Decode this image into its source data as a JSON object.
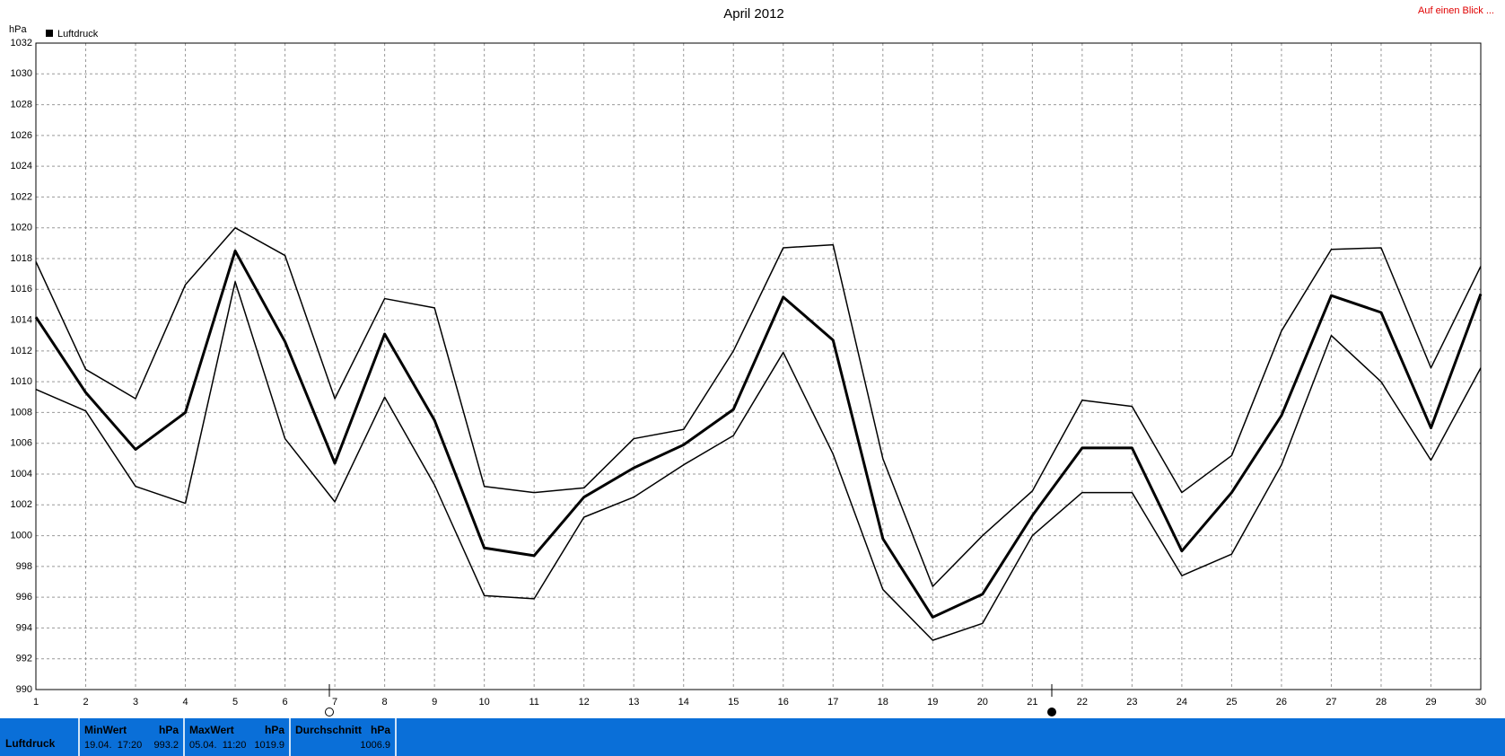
{
  "chart_data": {
    "type": "line",
    "title": "April 2012",
    "y_label": "hPa",
    "corner_link": "Auf einen Blick ...",
    "x": [
      1,
      2,
      3,
      4,
      5,
      6,
      7,
      8,
      9,
      10,
      11,
      12,
      13,
      14,
      15,
      16,
      17,
      18,
      19,
      20,
      21,
      22,
      23,
      24,
      25,
      26,
      27,
      28,
      29,
      30
    ],
    "xlim": [
      1,
      30
    ],
    "xticks": [
      1,
      2,
      3,
      4,
      5,
      6,
      7,
      8,
      9,
      10,
      11,
      12,
      13,
      14,
      15,
      16,
      17,
      18,
      19,
      20,
      21,
      22,
      23,
      24,
      25,
      26,
      27,
      28,
      29,
      30
    ],
    "ylim": [
      990,
      1032
    ],
    "yticks": [
      990,
      992,
      994,
      996,
      998,
      1000,
      1002,
      1004,
      1006,
      1008,
      1010,
      1012,
      1014,
      1016,
      1018,
      1020,
      1022,
      1024,
      1026,
      1028,
      1030,
      1032
    ],
    "grid": true,
    "legend": "top-left",
    "series": [
      {
        "name": "Luftdruck",
        "color": "#000000",
        "values": [
          1014.2,
          1009.3,
          1005.6,
          1008.0,
          1018.5,
          1012.6,
          1004.7,
          1013.1,
          1007.5,
          999.2,
          998.7,
          1002.5,
          1004.4,
          1005.9,
          1008.2,
          1015.5,
          1012.7,
          999.8,
          994.7,
          996.2,
          1001.3,
          1005.7,
          1005.7,
          999.0,
          1002.8,
          1007.8,
          1015.6,
          1014.5,
          1007.0,
          1015.7
        ]
      },
      {
        "color": "#000000",
        "values": [
          1017.8,
          1010.8,
          1008.9,
          1016.3,
          1020.0,
          1018.2,
          1008.9,
          1015.4,
          1014.8,
          1003.2,
          1002.8,
          1003.1,
          1006.3,
          1006.9,
          1012.0,
          1018.7,
          1018.9,
          1005.0,
          996.7,
          1000.0,
          1002.9,
          1008.8,
          1008.4,
          1002.8,
          1005.2,
          1013.3,
          1018.6,
          1018.7,
          1010.9,
          1017.5
        ]
      },
      {
        "color": "#000000",
        "values": [
          1009.5,
          1008.1,
          1003.2,
          1002.1,
          1016.5,
          1006.3,
          1002.2,
          1009.0,
          1003.3,
          996.1,
          995.9,
          1001.2,
          1002.5,
          1004.6,
          1006.5,
          1011.9,
          1005.3,
          996.5,
          993.2,
          994.3,
          1000.0,
          1002.8,
          1002.8,
          997.4,
          998.8,
          1004.6,
          1013.0,
          1010.0,
          1004.9,
          1010.9
        ]
      }
    ]
  },
  "stats": {
    "label": "Luftdruck",
    "columns": [
      {
        "title": "MinWert",
        "unit": "hPa",
        "time": "19.04.  17:20",
        "value": 993.2
      },
      {
        "title": "MaxWert",
        "unit": "hPa",
        "time": "05.04.  11:20",
        "value": 1019.9
      },
      {
        "title": "Durchschnitt",
        "unit": "hPa",
        "value": 1006.9
      }
    ]
  }
}
